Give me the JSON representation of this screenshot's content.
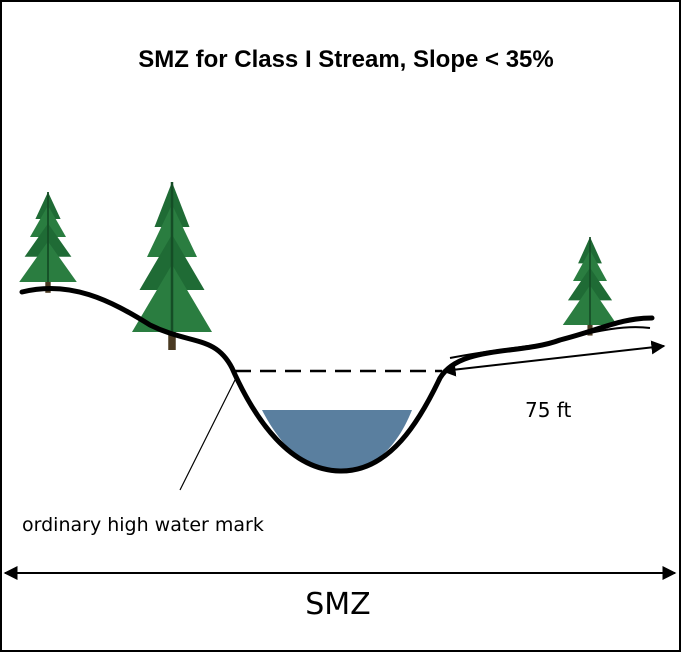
{
  "title": "SMZ for Class I Stream, Slope < 35%",
  "labels": {
    "distance": "75 ft",
    "high_water": "ordinary high water mark",
    "zone": "SMZ"
  }
}
